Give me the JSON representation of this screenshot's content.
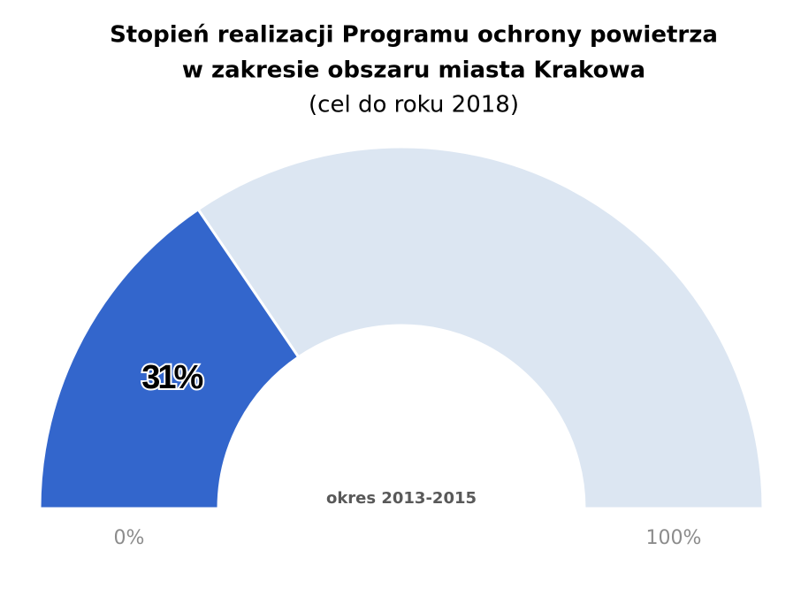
{
  "chart_data": {
    "type": "gauge",
    "title": [
      "Stopień realizacji Programu ochrony powietrza",
      "w zakresie obszaru miasta Krakowa"
    ],
    "subtitle": "(cel do roku 2018)",
    "annotation": "okres 2013-2015",
    "value": 31,
    "value_label": "31%",
    "color": "#3366cc",
    "track_color": "#dce6f2",
    "ylim": [
      0,
      100
    ],
    "yticks": [
      {
        "value": 0,
        "label": "0%"
      },
      {
        "value": 100,
        "label": "100%"
      }
    ]
  }
}
